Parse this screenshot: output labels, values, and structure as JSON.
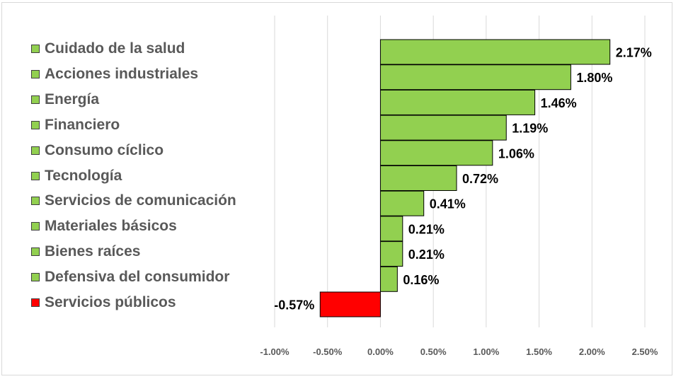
{
  "chart_data": {
    "type": "bar",
    "orientation": "horizontal",
    "categories": [
      "Cuidado de la salud",
      "Acciones industriales",
      "Energía",
      "Financiero",
      "Consumo cíclico",
      "Tecnología",
      "Servicios de comunicación",
      "Materiales básicos",
      "Bienes raíces",
      "Defensiva del consumidor",
      "Servicios públicos"
    ],
    "values": [
      2.17,
      1.8,
      1.46,
      1.19,
      1.06,
      0.72,
      0.41,
      0.21,
      0.21,
      0.16,
      -0.57
    ],
    "data_labels": [
      "2.17%",
      "1.80%",
      "1.46%",
      "1.19%",
      "1.06%",
      "0.72%",
      "0.41%",
      "0.21%",
      "0.21%",
      "0.16%",
      "-0.57%"
    ],
    "xlim": [
      -1.0,
      2.5
    ],
    "x_ticks": [
      -1.0,
      -0.5,
      0.0,
      0.5,
      1.0,
      1.5,
      2.0,
      2.5
    ],
    "x_tick_labels": [
      "-1.00%",
      "-0.50%",
      "0.00%",
      "0.50%",
      "1.00%",
      "1.50%",
      "2.00%",
      "2.50%"
    ],
    "grid": "vertical",
    "legend_position": "left",
    "colors": {
      "positive": "#92d050",
      "negative": "#ff0000",
      "grid": "#d9d9d9",
      "label": "#595959",
      "data_label": "#000000"
    },
    "title": "",
    "xlabel": "",
    "ylabel": ""
  }
}
